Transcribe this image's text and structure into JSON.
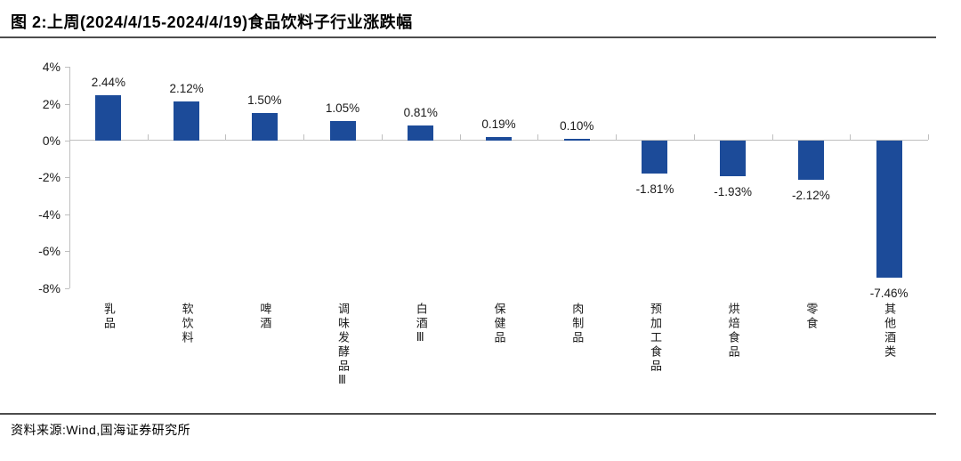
{
  "figure": {
    "title": "图 2:上周(2024/4/15-2024/4/19)食品饮料子行业涨跌幅",
    "source": "资料来源:Wind,国海证券研究所"
  },
  "chart_data": {
    "type": "bar",
    "title": "上周(2024/4/15-2024/4/19)食品饮料子行业涨跌幅",
    "categories": [
      "乳品",
      "软饮料",
      "啤酒",
      "调味发酵品Ⅲ",
      "白酒Ⅲ",
      "保健品",
      "肉制品",
      "预加工食品",
      "烘焙食品",
      "零食",
      "其他酒类"
    ],
    "values": [
      2.44,
      2.12,
      1.5,
      1.05,
      0.81,
      0.19,
      0.1,
      -1.81,
      -1.93,
      -2.12,
      -7.46
    ],
    "value_labels": [
      "2.44%",
      "2.12%",
      "1.50%",
      "1.05%",
      "0.81%",
      "0.19%",
      "0.10%",
      "-1.81%",
      "-1.93%",
      "-2.12%",
      "-7.46%"
    ],
    "xlabel": "",
    "ylabel": "",
    "ylim": [
      -8,
      4
    ],
    "y_ticks": [
      4,
      2,
      0,
      -2,
      -4,
      -6,
      -8
    ],
    "y_tick_labels": [
      "4%",
      "2%",
      "0%",
      "-2%",
      "-4%",
      "-6%",
      "-8%"
    ],
    "grid": false,
    "legend_position": "none",
    "bar_color": "#1c4b99",
    "axis_color": "#bfbfbf",
    "label_color": "#1a1a1a",
    "data_label_position": "outside-end",
    "category_label_orientation": "vertical"
  }
}
